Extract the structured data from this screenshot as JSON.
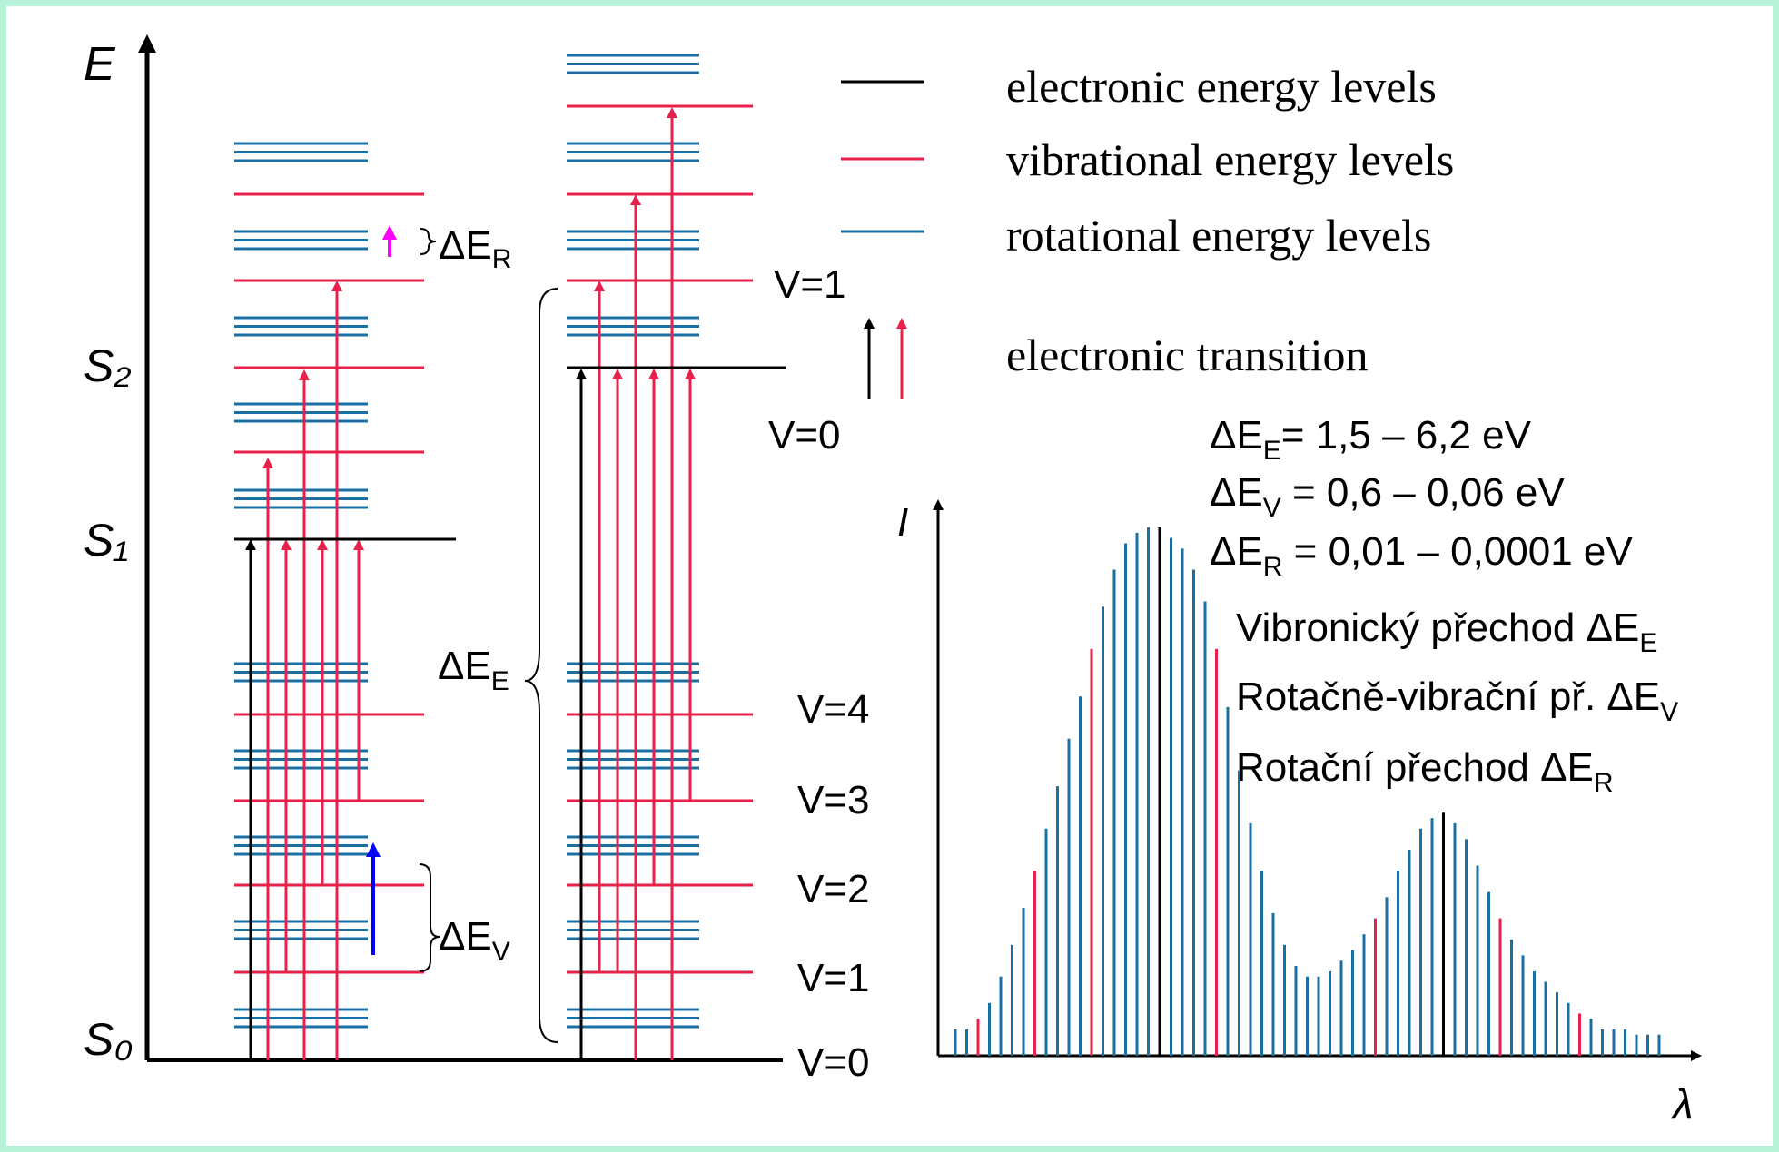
{
  "colors": {
    "electronic": "#000000",
    "vibrational": "#e8204a",
    "rotational": "#1a6fa3",
    "delta_r_arrow": "#ff00ff",
    "delta_v_arrow": "#0000ff",
    "border": "#b5f2d8"
  },
  "axes": {
    "energy_label": "E",
    "intensity_label": "I",
    "wavelength_label": "λ"
  },
  "state_labels": {
    "s0": "S₀",
    "s1": "S₁",
    "s2": "S₂"
  },
  "legend": {
    "electronic": "electronic energy levels",
    "vibrational": "vibrational energy levels",
    "rotational": "rotational energy levels",
    "transition": "electronic transition"
  },
  "gap_labels": {
    "delta_e": "E",
    "delta_v": "V",
    "delta_r": "R",
    "delta_symbol": "Δ"
  },
  "vib_labels_lower": [
    "V=0",
    "V=1",
    "V=2",
    "V=3",
    "V=4"
  ],
  "vib_labels_upper": [
    "V=0",
    "V=1"
  ],
  "energy_ranges": [
    {
      "sub": "E",
      "text": "= 1,5 – 6,2 eV"
    },
    {
      "sub": "V",
      "text": " = 0,6 – 0,06 eV"
    },
    {
      "sub": "R",
      "text": " = 0,01 – 0,0001 eV"
    }
  ],
  "transition_types": [
    {
      "text": "Vibronický přechod ΔE",
      "sub": "E"
    },
    {
      "text": "Rotačně-vibrační př. ΔE",
      "sub": "V"
    },
    {
      "text": "Rotační přechod ΔE",
      "sub": "R"
    }
  ],
  "spectrum": {
    "lines": [
      "b",
      "b",
      "r",
      "b",
      "b",
      "b",
      "b",
      "r",
      "b",
      "b",
      "b",
      "b",
      "r",
      "b",
      "b",
      "b",
      "b",
      "b",
      "k",
      "b",
      "b",
      "b",
      "b",
      "r",
      "b",
      "b",
      "b",
      "b",
      "b",
      "b",
      "b",
      "b",
      "b",
      "b",
      "b",
      "b",
      "b",
      "r",
      "b",
      "b",
      "b",
      "b",
      "b",
      "k",
      "b",
      "b",
      "b",
      "b",
      "r",
      "b",
      "b",
      "b",
      "b",
      "b",
      "b",
      "r",
      "b",
      "b",
      "b",
      "b",
      "b",
      "b",
      "b"
    ],
    "intensities": [
      0.05,
      0.05,
      0.07,
      0.1,
      0.15,
      0.21,
      0.28,
      0.35,
      0.43,
      0.51,
      0.6,
      0.68,
      0.77,
      0.85,
      0.92,
      0.97,
      0.99,
      1.0,
      1.0,
      0.98,
      0.96,
      0.92,
      0.86,
      0.77,
      0.66,
      0.54,
      0.44,
      0.35,
      0.27,
      0.21,
      0.17,
      0.15,
      0.15,
      0.16,
      0.18,
      0.2,
      0.23,
      0.26,
      0.3,
      0.35,
      0.39,
      0.43,
      0.45,
      0.46,
      0.44,
      0.41,
      0.36,
      0.31,
      0.26,
      0.22,
      0.19,
      0.16,
      0.14,
      0.12,
      0.1,
      0.08,
      0.07,
      0.05,
      0.05,
      0.05,
      0.04,
      0.04,
      0.04
    ]
  }
}
